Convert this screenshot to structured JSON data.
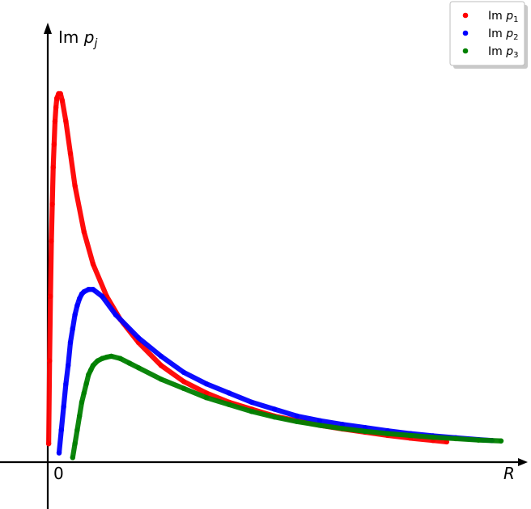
{
  "chart_data": {
    "type": "scatter",
    "title": "",
    "xlabel": "R",
    "ylabel": "Im p_j",
    "ylabel_text": "Im",
    "ylabel_var": "p",
    "ylabel_sub": "j",
    "x_tick_labels": [
      "0"
    ],
    "xlim": [
      -0.1,
      1.0
    ],
    "ylim": [
      -0.05,
      1.0
    ],
    "grid": false,
    "legend_position": "top-right",
    "series": [
      {
        "name": "Im p_1",
        "legend_text": "Im",
        "legend_var": "p",
        "legend_sub": "1",
        "color": "#ff0000",
        "x": [
          0.002,
          0.004,
          0.006,
          0.008,
          0.01,
          0.012,
          0.014,
          0.016,
          0.018,
          0.02,
          0.024,
          0.028,
          0.032,
          0.04,
          0.05,
          0.06,
          0.08,
          0.1,
          0.13,
          0.16,
          0.2,
          0.25,
          0.3,
          0.35,
          0.4,
          0.45,
          0.5,
          0.55,
          0.6,
          0.65,
          0.7,
          0.75,
          0.8,
          0.85,
          0.88
        ],
        "y": [
          0.04,
          0.22,
          0.36,
          0.48,
          0.56,
          0.64,
          0.69,
          0.74,
          0.77,
          0.79,
          0.8,
          0.8,
          0.785,
          0.74,
          0.67,
          0.6,
          0.5,
          0.43,
          0.36,
          0.31,
          0.26,
          0.21,
          0.175,
          0.15,
          0.13,
          0.115,
          0.1,
          0.09,
          0.08,
          0.072,
          0.065,
          0.058,
          0.052,
          0.047,
          0.044
        ]
      },
      {
        "name": "Im p_2",
        "legend_text": "Im",
        "legend_var": "p",
        "legend_sub": "2",
        "color": "#0000ff",
        "x": [
          0.025,
          0.03,
          0.035,
          0.04,
          0.045,
          0.05,
          0.055,
          0.06,
          0.065,
          0.07,
          0.075,
          0.08,
          0.09,
          0.1,
          0.12,
          0.15,
          0.2,
          0.25,
          0.3,
          0.35,
          0.4,
          0.45,
          0.5,
          0.55,
          0.6,
          0.65,
          0.7,
          0.75,
          0.8,
          0.85,
          0.9,
          0.95,
          0.98
        ],
        "y": [
          0.02,
          0.07,
          0.12,
          0.17,
          0.21,
          0.26,
          0.29,
          0.32,
          0.34,
          0.355,
          0.365,
          0.37,
          0.375,
          0.375,
          0.36,
          0.32,
          0.27,
          0.23,
          0.195,
          0.17,
          0.15,
          0.13,
          0.115,
          0.1,
          0.09,
          0.082,
          0.075,
          0.068,
          0.062,
          0.057,
          0.053,
          0.049,
          0.047
        ]
      },
      {
        "name": "Im p_3",
        "legend_text": "Im",
        "legend_var": "p",
        "legend_sub": "3",
        "color": "#008000",
        "x": [
          0.055,
          0.06,
          0.065,
          0.07,
          0.075,
          0.08,
          0.085,
          0.09,
          0.095,
          0.1,
          0.11,
          0.12,
          0.13,
          0.14,
          0.16,
          0.18,
          0.2,
          0.25,
          0.3,
          0.35,
          0.4,
          0.45,
          0.5,
          0.55,
          0.6,
          0.65,
          0.7,
          0.75,
          0.8,
          0.85,
          0.9,
          0.95,
          1.0
        ],
        "y": [
          0.01,
          0.04,
          0.07,
          0.1,
          0.13,
          0.15,
          0.17,
          0.19,
          0.2,
          0.21,
          0.22,
          0.225,
          0.228,
          0.23,
          0.225,
          0.215,
          0.205,
          0.18,
          0.16,
          0.14,
          0.125,
          0.11,
          0.098,
          0.088,
          0.08,
          0.073,
          0.067,
          0.062,
          0.058,
          0.054,
          0.051,
          0.048,
          0.046
        ]
      }
    ]
  },
  "colors": {
    "axis": "#000000",
    "legend_border": "#bdbdbd",
    "legend_shadow": "#c9c9c9"
  }
}
